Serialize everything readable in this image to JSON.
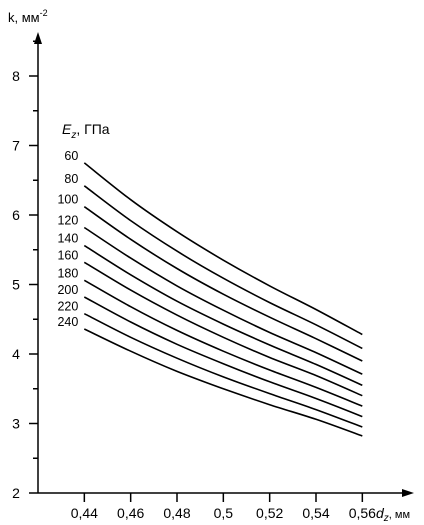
{
  "chart_data": {
    "type": "line",
    "title": "",
    "ylabel": "k, мм",
    "ylabel_exponent": "-2",
    "xlabel_base": "d",
    "xlabel_sub": "z",
    "xlabel_unit": ", мм",
    "legend_title_base": "E",
    "legend_title_sub": "z",
    "legend_title_unit": ", ГПа",
    "xlim": [
      0.42,
      0.58
    ],
    "ylim": [
      2,
      8.8
    ],
    "x_ticks": [
      0.44,
      0.46,
      0.48,
      0.5,
      0.52,
      0.54,
      0.56
    ],
    "x_tick_labels": [
      "0,44",
      "0,46",
      "0,48",
      "0,5",
      "0,52",
      "0,54",
      "0,56"
    ],
    "y_ticks": [
      2,
      3,
      4,
      5,
      6,
      7,
      8
    ],
    "y_tick_labels": [
      "2",
      "3",
      "4",
      "5",
      "6",
      "7",
      "8"
    ],
    "y_minor_step": 0.5,
    "grid": false,
    "x": [
      0.44,
      0.46,
      0.48,
      0.5,
      0.52,
      0.54,
      0.56
    ],
    "series": [
      {
        "name": "60",
        "values": [
          6.75,
          6.22,
          5.76,
          5.35,
          4.98,
          4.64,
          4.28
        ]
      },
      {
        "name": "80",
        "values": [
          6.42,
          5.92,
          5.48,
          5.09,
          4.74,
          4.42,
          4.08
        ]
      },
      {
        "name": "100",
        "values": [
          6.12,
          5.65,
          5.23,
          4.86,
          4.53,
          4.22,
          3.9
        ]
      },
      {
        "name": "120",
        "values": [
          5.82,
          5.38,
          4.98,
          4.63,
          4.31,
          4.02,
          3.71
        ]
      },
      {
        "name": "140",
        "values": [
          5.56,
          5.14,
          4.76,
          4.43,
          4.13,
          3.85,
          3.55
        ]
      },
      {
        "name": "160",
        "values": [
          5.32,
          4.92,
          4.56,
          4.24,
          3.95,
          3.69,
          3.4
        ]
      },
      {
        "name": "180",
        "values": [
          5.06,
          4.68,
          4.34,
          4.04,
          3.77,
          3.52,
          3.25
        ]
      },
      {
        "name": "200",
        "values": [
          4.82,
          4.46,
          4.14,
          3.86,
          3.6,
          3.36,
          3.1
        ]
      },
      {
        "name": "220",
        "values": [
          4.58,
          4.24,
          3.94,
          3.67,
          3.43,
          3.2,
          2.95
        ]
      },
      {
        "name": "240",
        "values": [
          4.36,
          4.04,
          3.75,
          3.5,
          3.27,
          3.06,
          2.82
        ]
      }
    ]
  }
}
